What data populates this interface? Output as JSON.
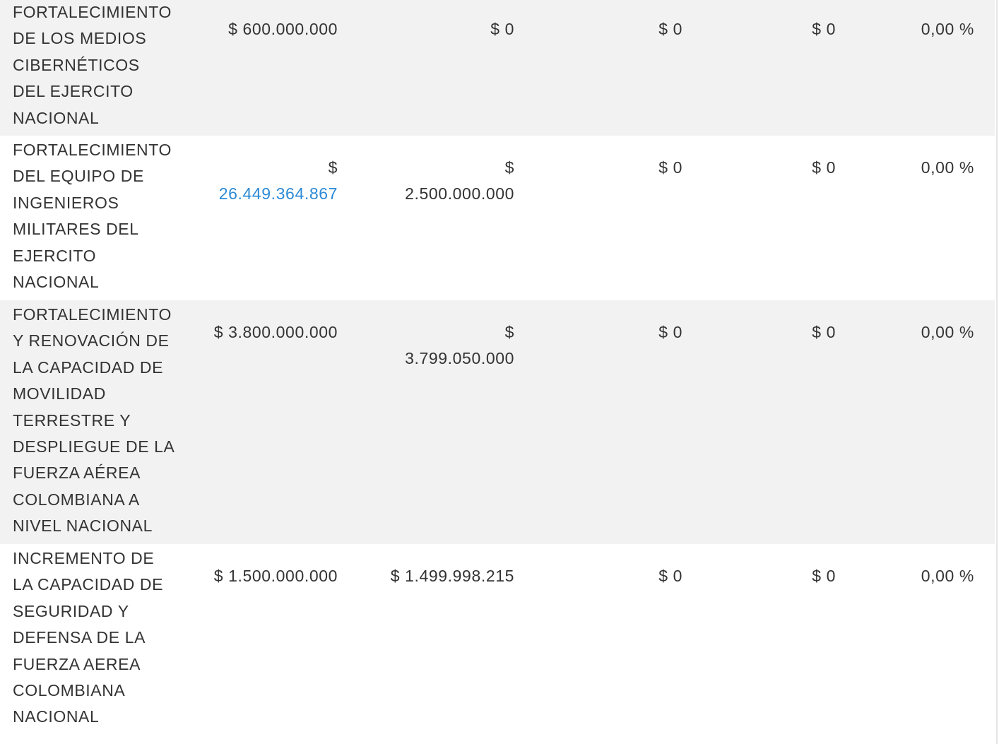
{
  "rows": [
    {
      "name": "FORTALECIMIENTO DE LOS MEDIOS CIBERNÉTICOS DEL EJERCITO NACIONAL",
      "c1_symbol": "$",
      "c1_value": "600.000.000",
      "c2_symbol": "$",
      "c2_value": "0",
      "c3": "$ 0",
      "c4": "$ 0",
      "c5": "0,00 %"
    },
    {
      "name": "FORTALECIMIENTO DEL EQUIPO DE INGENIEROS MILITARES DEL EJERCITO NACIONAL",
      "c1_symbol": "$",
      "c1_value": "26.449.364.867",
      "c2_symbol": "$",
      "c2_value": "2.500.000.000",
      "c3": "$ 0",
      "c4": "$ 0",
      "c5": "0,00 %"
    },
    {
      "name": "FORTALECIMIENTO Y RENOVACIÓN DE LA CAPACIDAD DE MOVILIDAD TERRESTRE Y DESPLIEGUE DE LA FUERZA AÉREA COLOMBIANA A NIVEL NACIONAL",
      "c1_symbol": "$",
      "c1_value": "3.800.000.000",
      "c2_symbol": "$",
      "c2_value": "3.799.050.000",
      "c3": "$ 0",
      "c4": "$ 0",
      "c5": "0,00 %"
    },
    {
      "name": "INCREMENTO DE LA CAPACIDAD DE SEGURIDAD Y DEFENSA DE LA FUERZA AEREA COLOMBIANA NACIONAL",
      "c1_symbol": "$",
      "c1_value": "1.500.000.000",
      "c2_symbol": "$",
      "c2_value": "1.499.998.215",
      "c3": "$ 0",
      "c4": "$ 0",
      "c5": "0,00 %"
    }
  ],
  "colors": {
    "row_odd": "#f2f2f2",
    "row_even": "#ffffff",
    "text": "#333333",
    "link": "#2b8ad6"
  }
}
